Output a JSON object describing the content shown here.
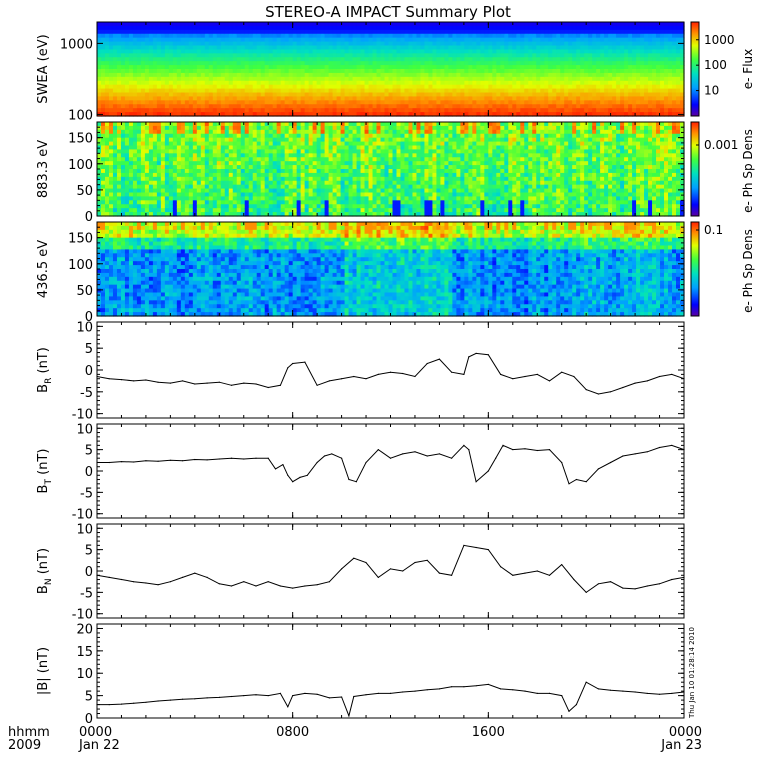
{
  "title": "STEREO-A IMPACT Summary Plot",
  "timestamp_note": "Thu Jan 10 01:28:14 2010",
  "x_axis": {
    "row1_label": "hhmm",
    "row2_label": "2009",
    "ticks": [
      {
        "label": "0000",
        "sub": "Jan 22",
        "hour": 0
      },
      {
        "label": "0800",
        "sub": "",
        "hour": 8
      },
      {
        "label": "1600",
        "sub": "",
        "hour": 16
      },
      {
        "label": "0000",
        "sub": "Jan 23",
        "hour": 24
      }
    ],
    "range_hours": [
      0,
      24
    ]
  },
  "chart_data": [
    {
      "type": "heatmap",
      "ylabel": "SWEA (eV)",
      "y_scale": "log",
      "yticks": [
        "1000",
        "100"
      ],
      "ytick_values": [
        1000,
        100
      ],
      "ylim": [
        95,
        2000
      ],
      "colorbar": {
        "label": "e- Flux",
        "ticks": [
          "1000",
          "100",
          "10"
        ],
        "tick_values": [
          1000,
          100,
          10
        ],
        "scale": "log",
        "range": [
          1,
          5000
        ]
      },
      "description_values": "flux increases toward low energy: ~5 at 2000 eV, ~500 at 400 eV, ~5000 at 100 eV"
    },
    {
      "type": "heatmap",
      "ylabel": "883.3 eV",
      "yticks": [
        "150",
        "100",
        "50",
        "0"
      ],
      "ytick_values": [
        150,
        100,
        50,
        0
      ],
      "ylim": [
        0,
        180
      ],
      "colorbar": {
        "label": "e- Ph Sp Dens",
        "ticks": [
          "0.001"
        ],
        "tick_values": [
          0.001
        ],
        "scale": "log"
      }
    },
    {
      "type": "heatmap",
      "ylabel": "436.5 eV",
      "yticks": [
        "150",
        "100",
        "50",
        "0"
      ],
      "ytick_values": [
        150,
        100,
        50,
        0
      ],
      "ylim": [
        0,
        180
      ],
      "colorbar": {
        "label": "e- Ph Sp Dens",
        "ticks": [
          "0.1"
        ],
        "tick_values": [
          0.1
        ],
        "scale": "log"
      }
    },
    {
      "type": "line",
      "ylabel": "B",
      "ylabel_sub": "R",
      "ylabel_unit": "(nT)",
      "yticks": [
        "10",
        "5",
        "0",
        "-5",
        "-10"
      ],
      "ytick_values": [
        10,
        5,
        0,
        -5,
        -10
      ],
      "ylim": [
        -11,
        11
      ],
      "x": [
        0,
        0.5,
        1,
        1.5,
        2,
        2.5,
        3,
        3.5,
        4,
        4.5,
        5,
        5.5,
        6,
        6.5,
        7,
        7.5,
        7.8,
        8,
        8.5,
        9,
        9.5,
        10,
        10.5,
        11,
        11.5,
        12,
        12.5,
        13,
        13.5,
        14,
        14.5,
        15,
        15.2,
        15.5,
        16,
        16.5,
        17,
        17.5,
        18,
        18.5,
        19,
        19.5,
        20,
        20.5,
        21,
        21.5,
        22,
        22.5,
        23,
        23.5,
        24
      ],
      "values": [
        -1.5,
        -2,
        -2.2,
        -2.5,
        -2.3,
        -2.8,
        -3,
        -2.5,
        -3.2,
        -3,
        -2.8,
        -3.5,
        -3,
        -3.2,
        -4,
        -3.5,
        0.5,
        1.5,
        1.8,
        -3.5,
        -2.5,
        -2,
        -1.5,
        -2,
        -1,
        -0.5,
        -0.8,
        -1.5,
        1.5,
        2.5,
        -0.5,
        -1,
        3,
        3.8,
        3.5,
        -1,
        -2,
        -1.5,
        -1,
        -2.5,
        -0.5,
        -1.5,
        -4.5,
        -5.5,
        -5,
        -4,
        -3,
        -2.5,
        -1.5,
        -1,
        -2
      ]
    },
    {
      "type": "line",
      "ylabel": "B",
      "ylabel_sub": "T",
      "ylabel_unit": "(nT)",
      "yticks": [
        "10",
        "5",
        "0",
        "-5",
        "-10"
      ],
      "ytick_values": [
        10,
        5,
        0,
        -5,
        -10
      ],
      "ylim": [
        -11,
        11
      ],
      "x": [
        0,
        0.5,
        1,
        1.5,
        2,
        2.5,
        3,
        3.5,
        4,
        4.5,
        5,
        5.5,
        6,
        6.5,
        7,
        7.3,
        7.6,
        7.8,
        8,
        8.3,
        8.6,
        9,
        9.3,
        9.6,
        10,
        10.3,
        10.6,
        11,
        11.5,
        12,
        12.5,
        13,
        13.5,
        14,
        14.5,
        15,
        15.2,
        15.5,
        16,
        16.3,
        16.6,
        17,
        17.5,
        18,
        18.5,
        19,
        19.3,
        19.6,
        20,
        20.5,
        21,
        21.5,
        22,
        22.5,
        23,
        23.5,
        24
      ],
      "values": [
        2,
        2,
        2.2,
        2.1,
        2.4,
        2.3,
        2.5,
        2.4,
        2.7,
        2.6,
        2.8,
        3,
        2.8,
        3,
        3,
        0.5,
        1.5,
        -1,
        -2.5,
        -1.5,
        -1,
        2,
        3.5,
        4,
        3,
        -2,
        -2.5,
        2,
        5,
        3,
        4,
        4.5,
        3.5,
        4,
        3,
        6,
        5,
        -2.5,
        0,
        3,
        6,
        5,
        5.2,
        4.8,
        5,
        2,
        -3,
        -2,
        -2.5,
        0.5,
        2,
        3.5,
        4,
        4.5,
        5.5,
        6,
        5
      ]
    },
    {
      "type": "line",
      "ylabel": "B",
      "ylabel_sub": "N",
      "ylabel_unit": "(nT)",
      "yticks": [
        "10",
        "5",
        "0",
        "-5",
        "-10"
      ],
      "ytick_values": [
        10,
        5,
        0,
        -5,
        -10
      ],
      "ylim": [
        -11,
        11
      ],
      "x": [
        0,
        0.5,
        1,
        1.5,
        2,
        2.5,
        3,
        3.5,
        4,
        4.5,
        5,
        5.5,
        6,
        6.5,
        7,
        7.5,
        8,
        8.5,
        9,
        9.5,
        10,
        10.5,
        11,
        11.5,
        12,
        12.5,
        13,
        13.5,
        14,
        14.5,
        15,
        15.5,
        16,
        16.5,
        17,
        17.5,
        18,
        18.5,
        19,
        19.5,
        20,
        20.5,
        21,
        21.5,
        22,
        22.5,
        23,
        23.5,
        24
      ],
      "values": [
        -1,
        -1.5,
        -2,
        -2.5,
        -2.8,
        -3.2,
        -2.5,
        -1.5,
        -0.5,
        -1.5,
        -3,
        -3.5,
        -2.5,
        -3.5,
        -2.5,
        -3.5,
        -4,
        -3.5,
        -3.2,
        -2.5,
        0.5,
        3,
        2,
        -1.5,
        0.5,
        0,
        2,
        2.5,
        -0.5,
        -1,
        6,
        5.5,
        5,
        1,
        -1,
        -0.5,
        0,
        -1,
        1.5,
        -2,
        -5,
        -3,
        -2.5,
        -4,
        -4.2,
        -3.5,
        -3,
        -2,
        -1.5
      ]
    },
    {
      "type": "line",
      "ylabel": "|B|",
      "ylabel_unit": "(nT)",
      "yticks": [
        "20",
        "15",
        "10",
        "5",
        "0"
      ],
      "ytick_values": [
        20,
        15,
        10,
        5,
        0
      ],
      "ylim": [
        0,
        21
      ],
      "x": [
        0,
        0.5,
        1,
        1.5,
        2,
        2.5,
        3,
        3.5,
        4,
        4.5,
        5,
        5.5,
        6,
        6.5,
        7,
        7.5,
        7.8,
        8,
        8.5,
        9,
        9.5,
        10,
        10.3,
        10.5,
        11,
        11.5,
        12,
        12.5,
        13,
        13.5,
        14,
        14.5,
        15,
        15.5,
        16,
        16.5,
        17,
        17.5,
        18,
        18.5,
        19,
        19.3,
        19.6,
        20,
        20.5,
        21,
        21.5,
        22,
        22.5,
        23,
        23.5,
        24
      ],
      "values": [
        3,
        3,
        3.1,
        3.3,
        3.5,
        3.8,
        4,
        4.2,
        4.3,
        4.5,
        4.6,
        4.8,
        5,
        5.2,
        5,
        5.5,
        2.5,
        5,
        5.5,
        5.3,
        4.5,
        4.7,
        0.5,
        4.8,
        5.2,
        5.5,
        5.5,
        5.8,
        6,
        6.3,
        6.5,
        7,
        7,
        7.2,
        7.5,
        6.5,
        6.3,
        6,
        5.5,
        5.5,
        5,
        1.5,
        3,
        8,
        6.5,
        6.2,
        6,
        5.8,
        5.5,
        5.3,
        5.5,
        5.8
      ]
    }
  ]
}
